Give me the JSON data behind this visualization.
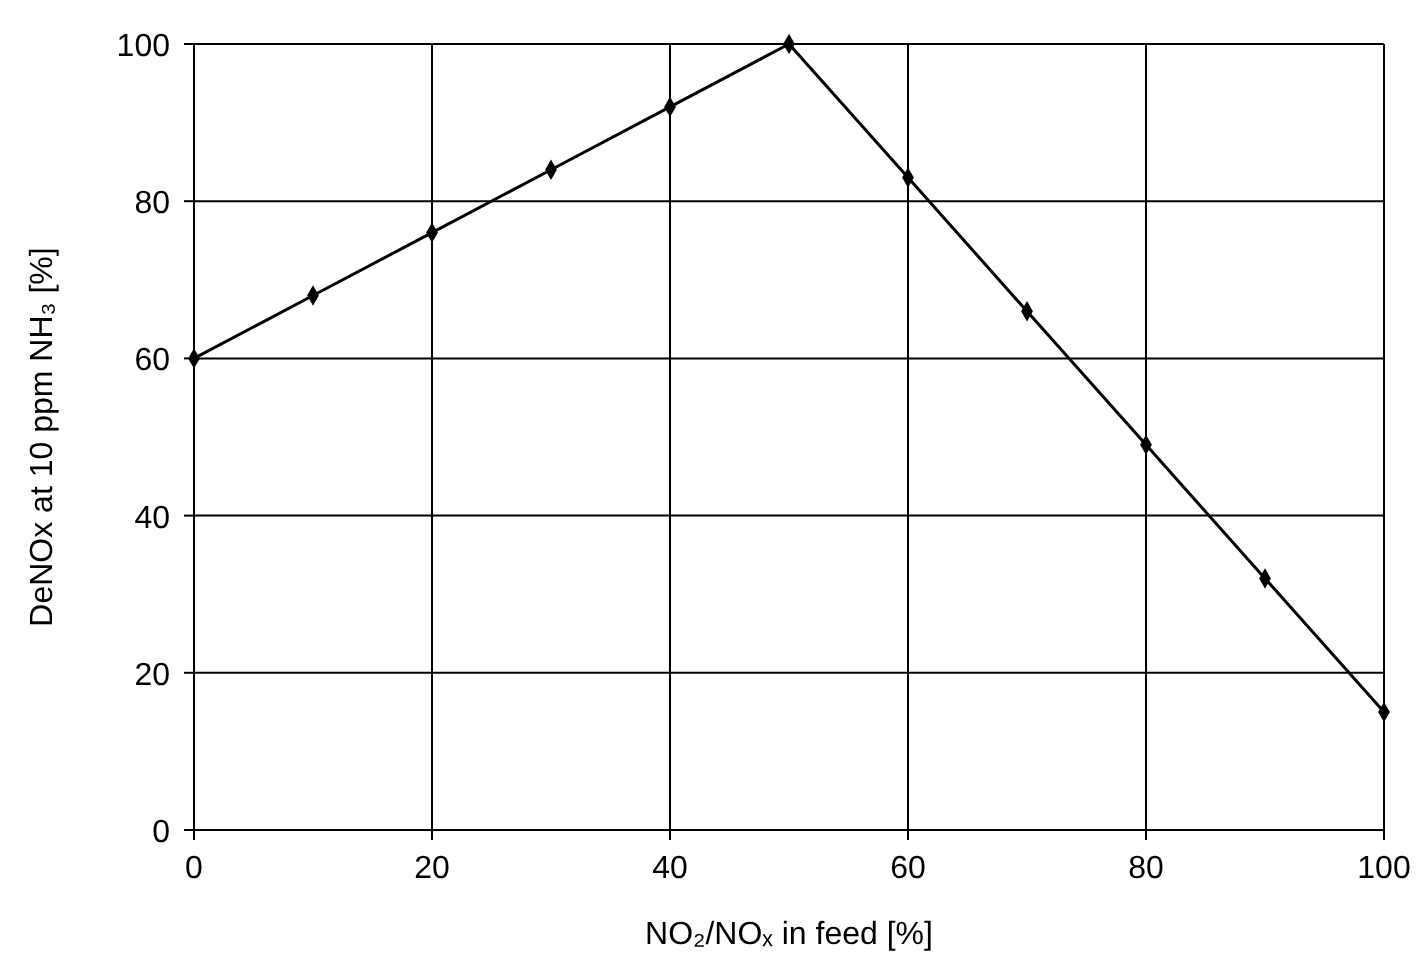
{
  "chart_data": {
    "type": "line",
    "xlabel": "NO₂/NOₓ in feed  [%]",
    "ylabel": "DeNOx at 10 ppm NH₃ [%]",
    "x": [
      0,
      10,
      20,
      30,
      40,
      50,
      60,
      70,
      80,
      90,
      100
    ],
    "series": [
      {
        "color": "#000000",
        "values": [
          60,
          68,
          76,
          84,
          92,
          100,
          83,
          66,
          49,
          32,
          15
        ]
      }
    ],
    "xlim": [
      0,
      100
    ],
    "xticks": [
      0,
      20,
      40,
      60,
      80,
      100
    ],
    "ylim": [
      0,
      100
    ],
    "yticks": [
      0,
      20,
      40,
      60,
      80,
      100
    ],
    "grid": true,
    "marker": "diamond",
    "line_style": "solid"
  }
}
